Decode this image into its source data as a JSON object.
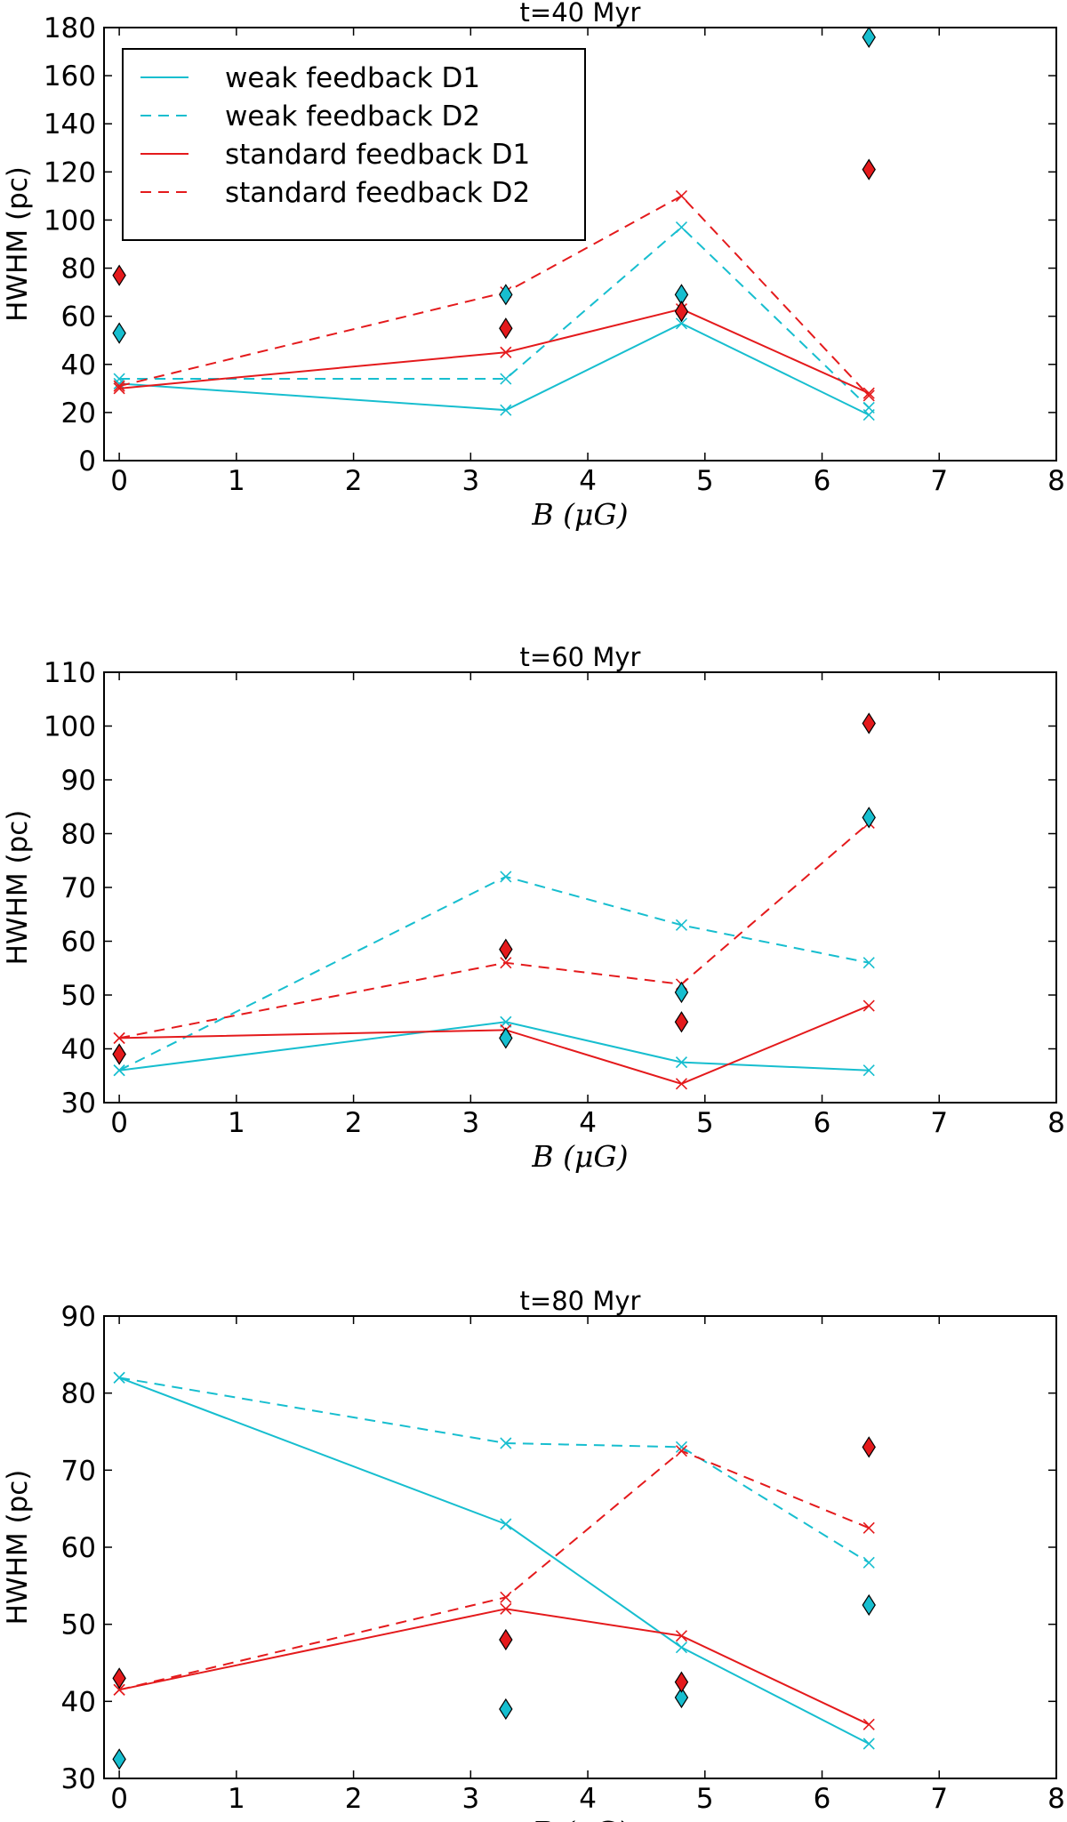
{
  "chart_data": [
    {
      "type": "line",
      "title": "t=40 Myr",
      "xlabel": "B (μG)",
      "ylabel": "HWHM (pc)",
      "xlim": [
        -0.13,
        8
      ],
      "ylim": [
        0,
        180
      ],
      "xticks": [
        "0",
        "1",
        "2",
        "3",
        "4",
        "5",
        "6",
        "7",
        "8"
      ],
      "yticks": [
        "0",
        "20",
        "40",
        "60",
        "80",
        "100",
        "120",
        "140",
        "160",
        "180"
      ],
      "x": [
        0,
        3.3,
        4.8,
        6.4
      ],
      "series": [
        {
          "name": "weak feedback D1",
          "color": "#17becf",
          "style": "solid",
          "values": [
            32,
            21,
            57,
            19
          ]
        },
        {
          "name": "weak feedback D2",
          "color": "#17becf",
          "style": "dashed",
          "values": [
            34,
            34,
            97,
            22
          ]
        },
        {
          "name": "standard feedback D1",
          "color": "#e41a1c",
          "style": "solid",
          "values": [
            30,
            45,
            63,
            28
          ]
        },
        {
          "name": "standard feedback D2",
          "color": "#e41a1c",
          "style": "dashed",
          "values": [
            31,
            70,
            110,
            27
          ]
        }
      ],
      "diamonds": [
        {
          "name": "weak feedback",
          "color": "#17becf",
          "values": [
            53,
            69,
            69,
            176
          ]
        },
        {
          "name": "standard feedback",
          "color": "#e41a1c",
          "values": [
            77,
            55,
            62,
            121
          ]
        }
      ],
      "legend": "top-left"
    },
    {
      "type": "line",
      "title": "t=60 Myr",
      "xlabel": "B (μG)",
      "ylabel": "HWHM (pc)",
      "xlim": [
        -0.13,
        8
      ],
      "ylim": [
        30,
        110
      ],
      "xticks": [
        "0",
        "1",
        "2",
        "3",
        "4",
        "5",
        "6",
        "7",
        "8"
      ],
      "yticks": [
        "30",
        "40",
        "50",
        "60",
        "70",
        "80",
        "90",
        "100",
        "110"
      ],
      "x": [
        0,
        3.3,
        4.8,
        6.4
      ],
      "series": [
        {
          "name": "weak feedback D1",
          "color": "#17becf",
          "style": "solid",
          "values": [
            36,
            45,
            37.5,
            36
          ]
        },
        {
          "name": "weak feedback D2",
          "color": "#17becf",
          "style": "dashed",
          "values": [
            36,
            72,
            63,
            56
          ]
        },
        {
          "name": "standard feedback D1",
          "color": "#e41a1c",
          "style": "solid",
          "values": [
            42,
            43.5,
            33.5,
            48
          ]
        },
        {
          "name": "standard feedback D2",
          "color": "#e41a1c",
          "style": "dashed",
          "values": [
            42,
            56,
            52,
            82
          ]
        }
      ],
      "diamonds": [
        {
          "name": "weak feedback",
          "color": "#17becf",
          "values": [
            39,
            42,
            50.5,
            83
          ]
        },
        {
          "name": "standard feedback",
          "color": "#e41a1c",
          "values": [
            39,
            58.5,
            45,
            100.5
          ]
        }
      ]
    },
    {
      "type": "line",
      "title": "t=80 Myr",
      "xlabel": "B (μG)",
      "ylabel": "HWHM (pc)",
      "xlim": [
        -0.13,
        8
      ],
      "ylim": [
        30,
        90
      ],
      "xticks": [
        "0",
        "1",
        "2",
        "3",
        "4",
        "5",
        "6",
        "7",
        "8"
      ],
      "yticks": [
        "30",
        "40",
        "50",
        "60",
        "70",
        "80",
        "90"
      ],
      "x": [
        0,
        3.3,
        4.8,
        6.4
      ],
      "series": [
        {
          "name": "weak feedback D1",
          "color": "#17becf",
          "style": "solid",
          "values": [
            82,
            63,
            47,
            34.5
          ]
        },
        {
          "name": "weak feedback D2",
          "color": "#17becf",
          "style": "dashed",
          "values": [
            82,
            73.5,
            73,
            58
          ]
        },
        {
          "name": "standard feedback D1",
          "color": "#e41a1c",
          "style": "solid",
          "values": [
            41.5,
            52,
            48.5,
            37
          ]
        },
        {
          "name": "standard feedback D2",
          "color": "#e41a1c",
          "style": "dashed",
          "values": [
            41.5,
            53.5,
            72.5,
            62.5
          ]
        }
      ],
      "diamonds": [
        {
          "name": "weak feedback",
          "color": "#17becf",
          "values": [
            32.5,
            39,
            40.5,
            52.5
          ]
        },
        {
          "name": "standard feedback",
          "color": "#e41a1c",
          "values": [
            43,
            48,
            42.5,
            73
          ]
        }
      ]
    }
  ]
}
